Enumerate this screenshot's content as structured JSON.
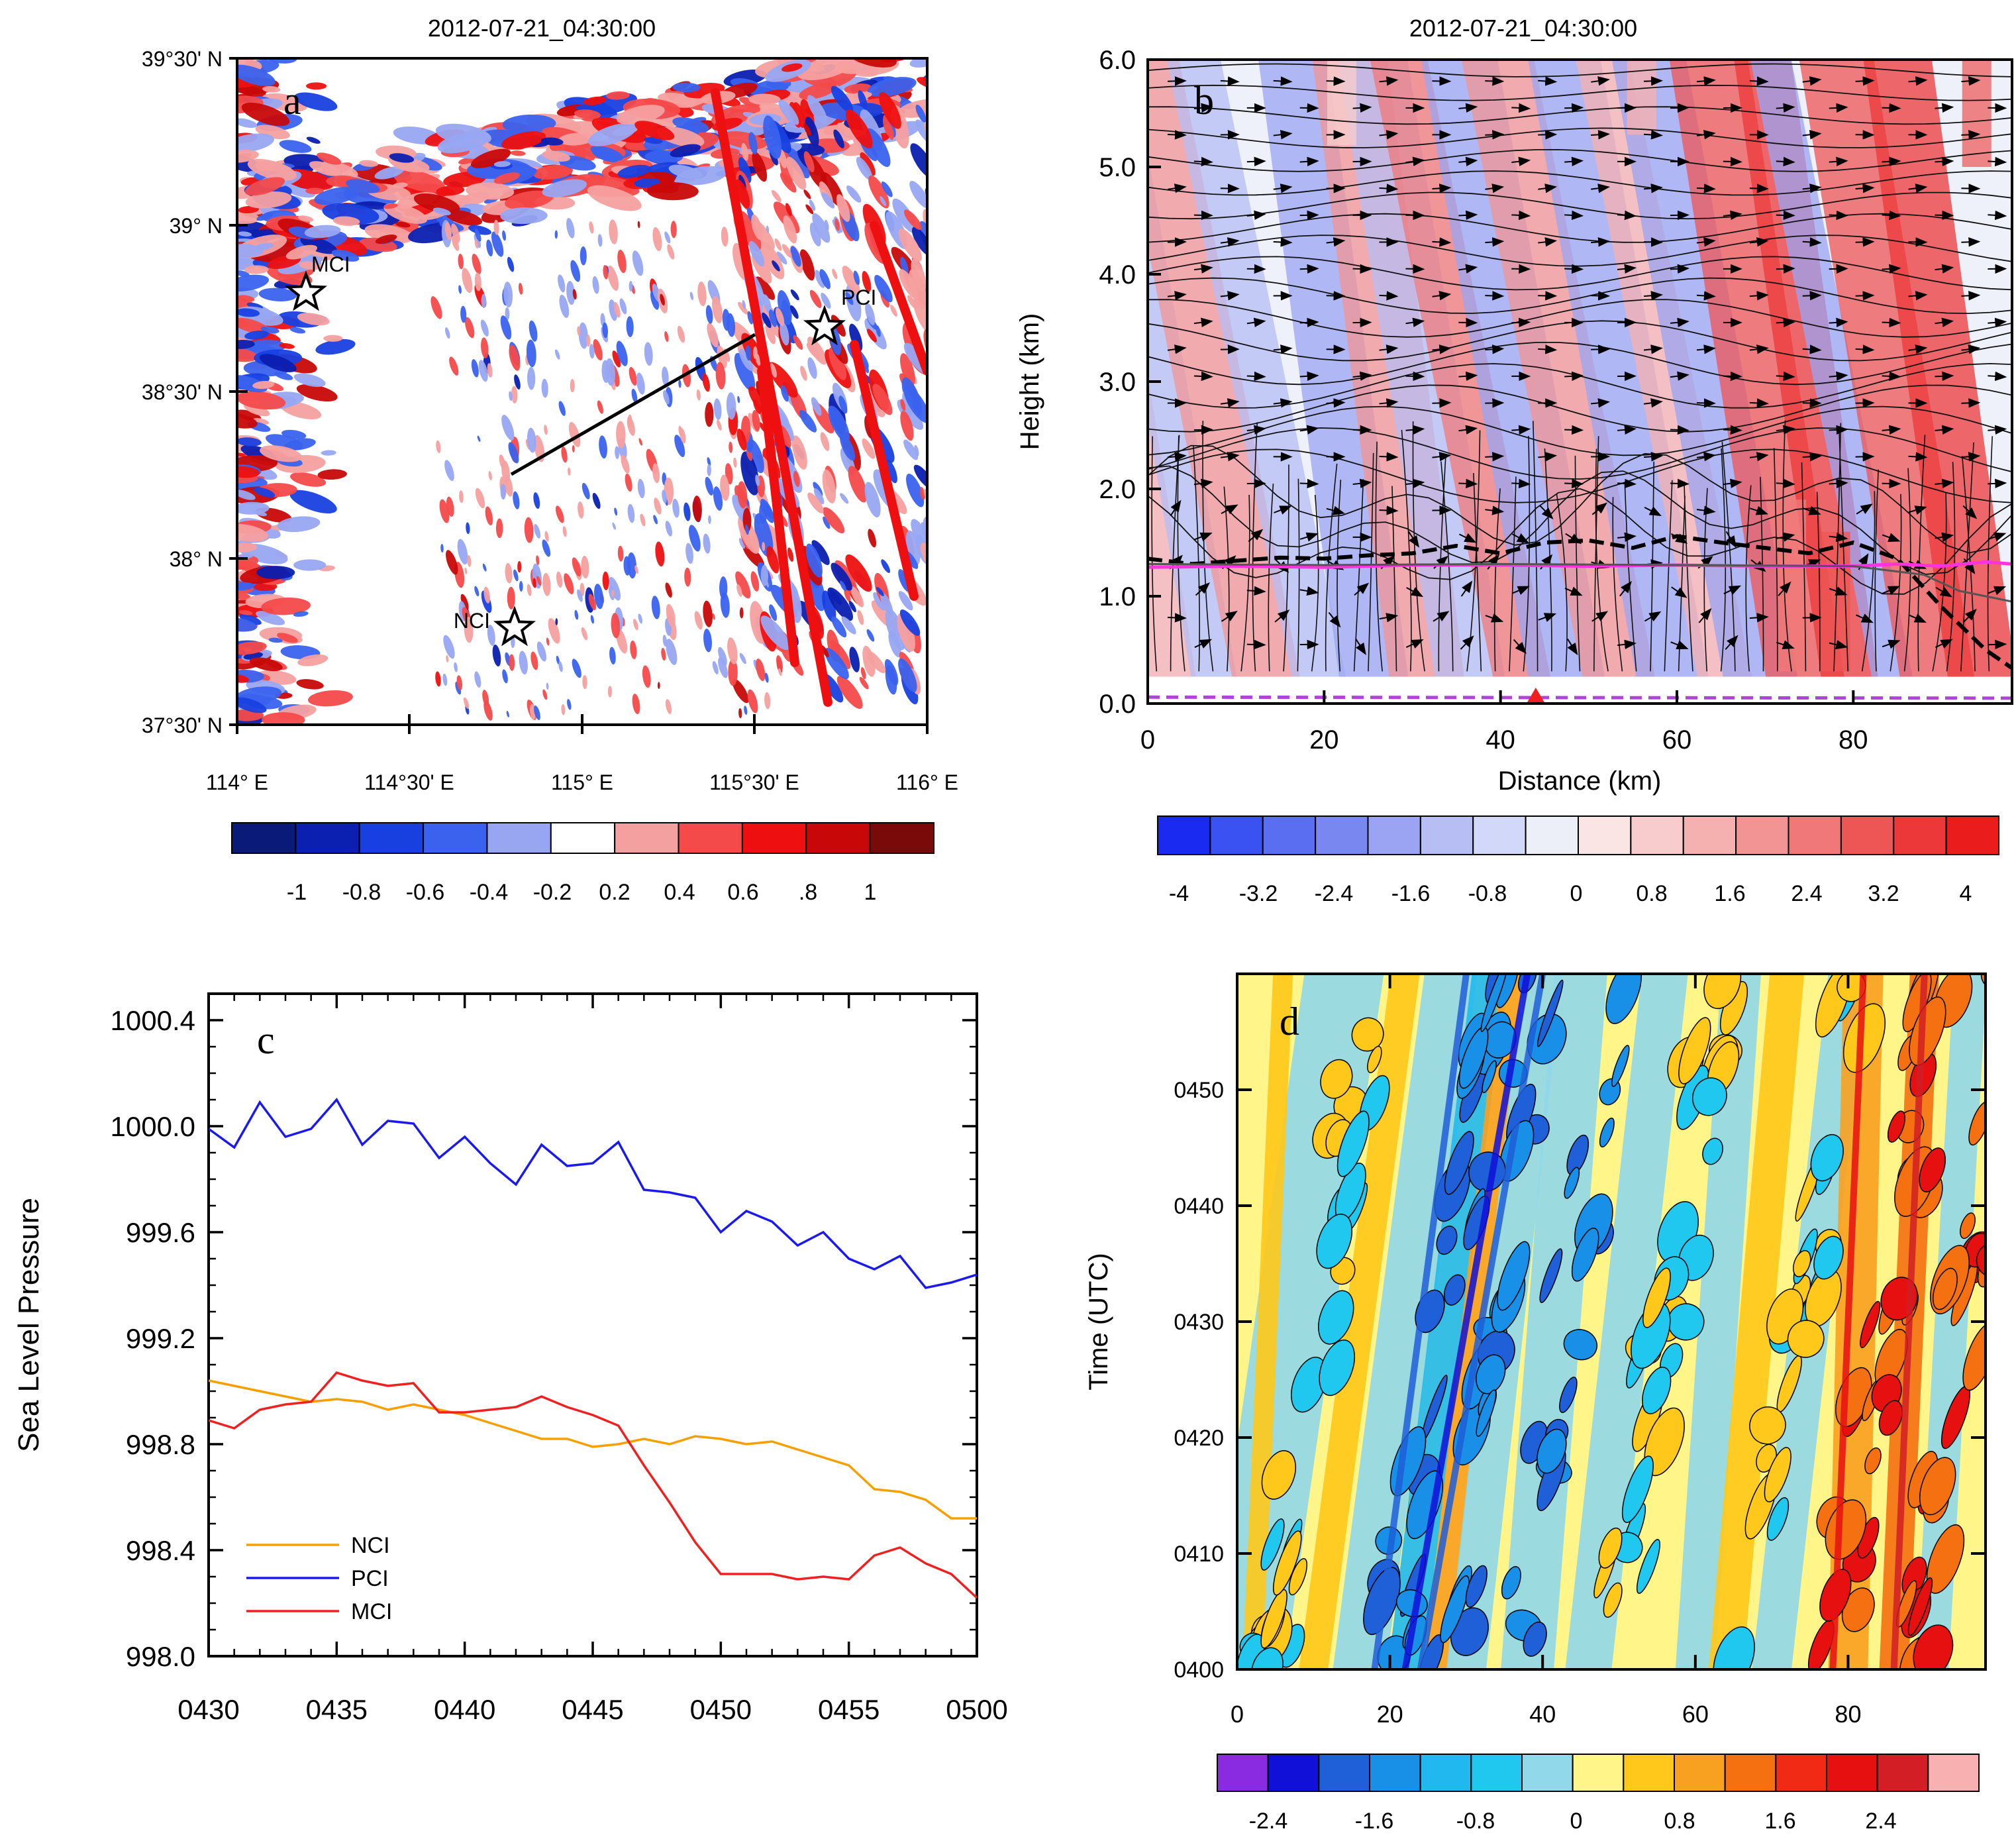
{
  "colors": {
    "div_blue_dark": "#0a1a78",
    "div_red_dark": "#7a0a0a",
    "pcl_blue": "#1a1aee",
    "ncl_orange": "#f5a000",
    "mcl_red": "#ee2020",
    "pbl_magenta": "#ff33dd",
    "dashed_purple": "#b044d8",
    "marker_red": "#ee2020"
  },
  "chart_data": [
    {
      "panel": "a",
      "type": "heatmap",
      "title": "2012-07-21_04:30:00",
      "panel_letter": "a",
      "y_ticks": [
        "39°30' N",
        "39° N",
        "38°30' N",
        "38° N",
        "37°30' N"
      ],
      "x_ticks": [
        "114° E",
        "114°30' E",
        "115° E",
        "115°30' E",
        "116° E"
      ],
      "colorbar_labels": [
        "-1",
        "-0.8",
        "-0.6",
        "-0.4",
        "-0.2",
        "0.2",
        "0.4",
        "0.6",
        ".8",
        "1"
      ],
      "colorbar_colors": [
        "#0a1a78",
        "#0b1fb0",
        "#1840e0",
        "#3a62ee",
        "#98a6f2",
        "#ffffff",
        "#f5a0a0",
        "#f44a4a",
        "#ee1010",
        "#c80808",
        "#7a0a0a"
      ],
      "stations": [
        {
          "name": "MCI",
          "lon": 114.2,
          "lat": 38.8
        },
        {
          "name": "PCI",
          "lon": 115.7,
          "lat": 38.7
        },
        {
          "name": "NCI",
          "lon": 114.8,
          "lat": 37.8
        }
      ],
      "cross_section": {
        "start": [
          114.8,
          38.25
        ],
        "end": [
          115.5,
          38.66
        ]
      }
    },
    {
      "panel": "b",
      "type": "heatmap",
      "title": "2012-07-21_04:30:00",
      "panel_letter": "b",
      "xlabel": "Distance (km)",
      "ylabel": "Height (km)",
      "xlim": [
        0,
        98
      ],
      "ylim": [
        0,
        6
      ],
      "x_ticks": [
        "0",
        "20",
        "40",
        "60",
        "80"
      ],
      "y_ticks": [
        "0.0",
        "1.0",
        "2.0",
        "3.0",
        "4.0",
        "5.0",
        "6.0"
      ],
      "colorbar_labels": [
        "-4",
        "-3.2",
        "-2.4",
        "-1.6",
        "-0.8",
        "0",
        "0.8",
        "1.6",
        "2.4",
        "3.2",
        "4"
      ],
      "colorbar_colors": [
        "#1a2af0",
        "#3a52f2",
        "#5a6ef2",
        "#7888f0",
        "#9aa4f2",
        "#b6bef4",
        "#d2d8f8",
        "#eceef8",
        "#fae4e4",
        "#f8cccc",
        "#f5b0b0",
        "#f29494",
        "#f07878",
        "#ee5656",
        "#ec3838",
        "#ea1c1c"
      ],
      "series": [
        {
          "name": "black-dashed",
          "x": [
            0,
            5,
            10,
            15,
            20,
            25,
            30,
            35,
            40,
            45,
            50,
            55,
            60,
            65,
            70,
            75,
            80,
            85,
            90,
            95,
            98
          ],
          "values": [
            1.35,
            1.3,
            1.33,
            1.36,
            1.35,
            1.38,
            1.4,
            1.47,
            1.4,
            1.5,
            1.52,
            1.45,
            1.56,
            1.5,
            1.45,
            1.4,
            1.5,
            1.35,
            0.9,
            0.5,
            0.33
          ]
        },
        {
          "name": "magenta",
          "x": [
            0,
            10,
            20,
            30,
            40,
            50,
            60,
            70,
            80,
            85,
            90,
            95,
            98
          ],
          "values": [
            1.27,
            1.28,
            1.27,
            1.29,
            1.29,
            1.28,
            1.29,
            1.28,
            1.28,
            1.3,
            1.28,
            1.32,
            1.3
          ]
        },
        {
          "name": "gray",
          "x": [
            0,
            20,
            40,
            60,
            80,
            88,
            92,
            98
          ],
          "values": [
            1.3,
            1.29,
            1.3,
            1.29,
            1.28,
            1.2,
            1.05,
            0.95
          ]
        },
        {
          "name": "purple-dashed",
          "x": [
            0,
            98
          ],
          "values": [
            0.06,
            0.05
          ]
        }
      ],
      "marker_x": 44
    },
    {
      "panel": "c",
      "type": "line",
      "panel_letter": "c",
      "ylabel": "Sea Level Pressure",
      "ylim": [
        998.0,
        1000.5
      ],
      "x_ticks": [
        "0430",
        "0435",
        "0440",
        "0445",
        "0450",
        "0455",
        "0500"
      ],
      "y_ticks": [
        "998.0",
        "998.4",
        "998.8",
        "999.2",
        "999.6",
        "1000.0",
        "1000.4"
      ],
      "x": [
        0,
        1,
        2,
        3,
        4,
        5,
        6,
        7,
        8,
        9,
        10,
        11,
        12,
        13,
        14,
        15,
        16,
        17,
        18,
        19,
        20,
        21,
        22,
        23,
        24,
        25,
        26,
        27,
        28,
        29,
        30
      ],
      "series": [
        {
          "name": "NCI",
          "color": "#f5a000",
          "values": [
            999.04,
            999.02,
            999.0,
            998.98,
            998.96,
            998.97,
            998.96,
            998.93,
            998.95,
            998.93,
            998.91,
            998.88,
            998.85,
            998.82,
            998.82,
            998.79,
            998.8,
            998.82,
            998.8,
            998.83,
            998.82,
            998.8,
            998.81,
            998.78,
            998.75,
            998.72,
            998.63,
            998.62,
            998.59,
            998.52,
            998.52
          ]
        },
        {
          "name": "PCI",
          "color": "#1a1aee",
          "values": [
            999.99,
            999.92,
            1000.09,
            999.96,
            999.99,
            1000.1,
            999.93,
            1000.02,
            1000.01,
            999.88,
            999.96,
            999.86,
            999.78,
            999.93,
            999.85,
            999.86,
            999.94,
            999.76,
            999.75,
            999.73,
            999.6,
            999.68,
            999.64,
            999.55,
            999.6,
            999.5,
            999.46,
            999.51,
            999.39,
            999.41,
            999.44
          ]
        },
        {
          "name": "MCI",
          "color": "#ee2020",
          "values": [
            998.89,
            998.86,
            998.93,
            998.95,
            998.96,
            999.07,
            999.04,
            999.02,
            999.03,
            998.92,
            998.92,
            998.93,
            998.94,
            998.98,
            998.94,
            998.91,
            998.87,
            998.72,
            998.58,
            998.43,
            998.31,
            998.31,
            998.31,
            998.29,
            998.3,
            998.29,
            998.38,
            998.41,
            998.35,
            998.31,
            998.22
          ]
        }
      ]
    },
    {
      "panel": "d",
      "type": "heatmap",
      "panel_letter": "d",
      "ylabel": "Time (UTC)",
      "xlim": [
        0,
        98
      ],
      "x_ticks": [
        "0",
        "20",
        "40",
        "60",
        "80"
      ],
      "y_ticks": [
        "0400",
        "0410",
        "0420",
        "0430",
        "0440",
        "0450"
      ],
      "colorbar_labels": [
        "-2.4",
        "-1.6",
        "-0.8",
        "0",
        "0.8",
        "1.6",
        "2.4"
      ],
      "colorbar_colors": [
        "#8a2be2",
        "#1010d8",
        "#1f5fd8",
        "#1890e8",
        "#20b8ee",
        "#20c8f0",
        "#90d8ea",
        "#fff588",
        "#ffc81a",
        "#f8a020",
        "#f47010",
        "#f02a14",
        "#e61010",
        "#d21e24",
        "#f8b0b0"
      ]
    }
  ]
}
